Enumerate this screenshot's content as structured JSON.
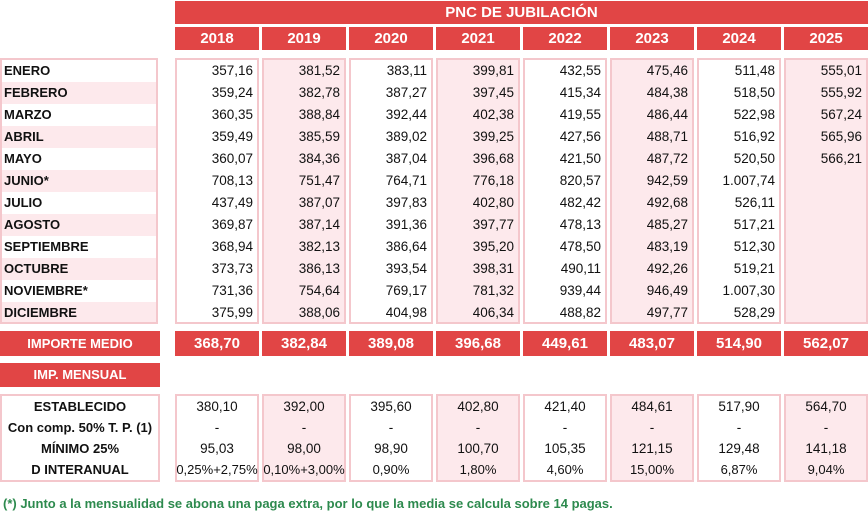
{
  "title": "PNC DE JUBILACIÓN",
  "years": [
    "2018",
    "2019",
    "2020",
    "2021",
    "2022",
    "2023",
    "2024",
    "2025"
  ],
  "months": [
    "ENERO",
    "FEBRERO",
    "MARZO",
    "ABRIL",
    "MAYO",
    "JUNIO*",
    "JULIO",
    "AGOSTO",
    "SEPTIEMBRE",
    "OCTUBRE",
    "NOVIEMBRE*",
    "DICIEMBRE"
  ],
  "values": [
    [
      "357,16",
      "381,52",
      "383,11",
      "399,81",
      "432,55",
      "475,46",
      "511,48",
      "555,01"
    ],
    [
      "359,24",
      "382,78",
      "387,27",
      "397,45",
      "415,34",
      "484,38",
      "518,50",
      "555,92"
    ],
    [
      "360,35",
      "388,84",
      "392,44",
      "402,38",
      "419,55",
      "486,44",
      "522,98",
      "567,24"
    ],
    [
      "359,49",
      "385,59",
      "389,02",
      "399,25",
      "427,56",
      "488,71",
      "516,92",
      "565,96"
    ],
    [
      "360,07",
      "384,36",
      "387,04",
      "396,68",
      "421,50",
      "487,72",
      "520,50",
      "566,21"
    ],
    [
      "708,13",
      "751,47",
      "764,71",
      "776,18",
      "820,57",
      "942,59",
      "1.007,74",
      ""
    ],
    [
      "437,49",
      "387,07",
      "397,83",
      "402,80",
      "482,42",
      "492,68",
      "526,11",
      ""
    ],
    [
      "369,87",
      "387,14",
      "391,36",
      "397,77",
      "478,13",
      "485,27",
      "517,21",
      ""
    ],
    [
      "368,94",
      "382,13",
      "386,64",
      "395,20",
      "478,50",
      "483,19",
      "512,30",
      ""
    ],
    [
      "373,73",
      "386,13",
      "393,54",
      "398,31",
      "490,11",
      "492,26",
      "519,21",
      ""
    ],
    [
      "731,36",
      "754,64",
      "769,17",
      "781,32",
      "939,44",
      "946,49",
      "1.007,30",
      ""
    ],
    [
      "375,99",
      "388,06",
      "404,98",
      "406,34",
      "488,82",
      "497,77",
      "528,29",
      ""
    ]
  ],
  "importe_medio": {
    "label": "IMPORTE MEDIO",
    "values": [
      "368,70",
      "382,84",
      "389,08",
      "396,68",
      "449,61",
      "483,07",
      "514,90",
      "562,07"
    ]
  },
  "imp_mensual": {
    "label": "IMP. MENSUAL"
  },
  "bottom_rows": [
    {
      "label": "ESTABLECIDO",
      "values": [
        "380,10",
        "392,00",
        "395,60",
        "402,80",
        "421,40",
        "484,61",
        "517,90",
        "564,70"
      ]
    },
    {
      "label": "Con comp. 50% T. P. (1)",
      "values": [
        "-",
        "-",
        "-",
        "-",
        "-",
        "-",
        "-",
        "-"
      ]
    },
    {
      "label": "MÍNIMO 25%",
      "values": [
        "95,03",
        "98,00",
        "98,90",
        "100,70",
        "105,35",
        "121,15",
        "129,48",
        "141,18"
      ]
    },
    {
      "label": "D INTERANUAL",
      "values": [
        "0,25%+2,75%",
        "0,10%+3,00%",
        "0,90%",
        "1,80%",
        "4,60%",
        "15,00%",
        "6,87%",
        "9,04%"
      ]
    }
  ],
  "footnote": "(*) Junto a la mensualidad se abona una paga extra, por lo que la media se calcula sobre 14 pagas."
}
